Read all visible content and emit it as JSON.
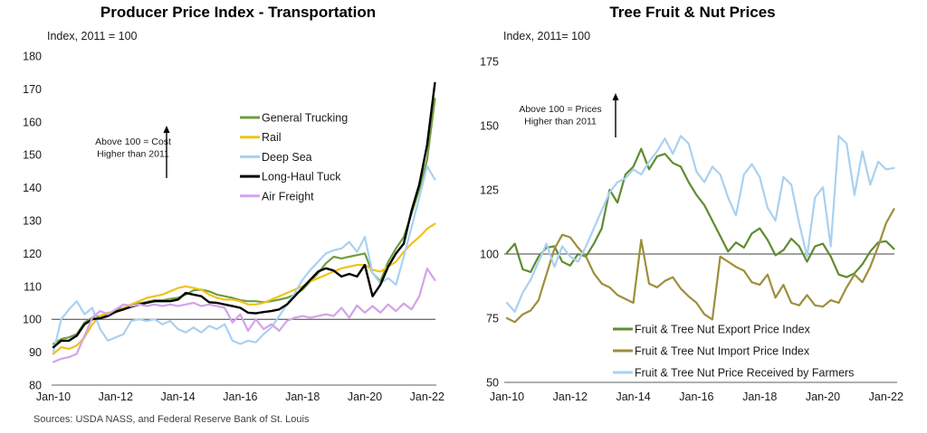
{
  "sources_note": "Sources: USDA NASS, and Federal Reserve  Bank of St. Louis",
  "chart_data": [
    {
      "type": "line",
      "title": "Producer Price Index - Transportation",
      "subtitle": "Index,  2011 = 100",
      "annotation": {
        "lines": [
          "Above 100 = Cost",
          "Higher than 2011"
        ],
        "arrow": "up"
      },
      "x_tick_labels": [
        "Jan-10",
        "Jan-12",
        "Jan-14",
        "Jan-16",
        "Jan-18",
        "Jan-20",
        "Jan-22"
      ],
      "x_tick_years": [
        2010,
        2012,
        2014,
        2016,
        2018,
        2020,
        2022
      ],
      "x_start": 2010.0,
      "x_step": 0.25,
      "ylim": [
        80,
        180
      ],
      "y_ticks": [
        80,
        90,
        100,
        110,
        120,
        130,
        140,
        150,
        160,
        170,
        180
      ],
      "reference_line": 100,
      "grid": false,
      "legend_position": "inside-upper-middle",
      "series": [
        {
          "name": "General Trucking",
          "color": "#6f9d3f",
          "values": [
            92.5,
            94,
            94.5,
            95.5,
            99,
            100.5,
            101,
            101.5,
            102.8,
            103.5,
            104,
            104.8,
            105.3,
            105.8,
            105.8,
            106.2,
            106.5,
            107.5,
            108.8,
            109,
            108.5,
            107.5,
            107,
            106.5,
            105.8,
            105.5,
            105.5,
            105.2,
            105.5,
            106,
            106.5,
            107.5,
            109,
            111.5,
            114,
            117,
            119,
            118.5,
            119,
            119.5,
            120,
            114,
            111.5,
            117.5,
            121.5,
            125,
            132,
            139.5,
            148.5,
            167
          ]
        },
        {
          "name": "Rail",
          "color": "#efc319",
          "values": [
            89.5,
            91.5,
            91,
            92,
            94.5,
            98.5,
            101,
            102,
            102,
            103.5,
            104.5,
            105.5,
            106.5,
            107,
            107.5,
            108.5,
            109.5,
            110,
            109.5,
            109,
            107.5,
            106.5,
            106,
            106,
            105.5,
            104.5,
            104.5,
            105,
            106,
            107,
            108,
            109,
            110,
            111.5,
            112.5,
            113.5,
            114.5,
            115.5,
            116,
            116.5,
            116.5,
            115,
            114.5,
            116,
            117.5,
            120.5,
            123,
            125,
            127.5,
            129
          ]
        },
        {
          "name": "Deep Sea",
          "color": "#a9d1f0",
          "values": [
            90,
            100,
            103,
            105.5,
            101.5,
            103.5,
            97,
            93.5,
            94.5,
            95.5,
            99.5,
            100,
            99.5,
            100,
            98.5,
            99.5,
            97,
            96,
            97.5,
            96,
            98,
            97,
            98.5,
            93.5,
            92.5,
            93.5,
            93,
            95.5,
            97.5,
            101,
            104.5,
            108,
            112,
            115,
            117.5,
            120,
            121,
            121.5,
            123.5,
            120.5,
            125,
            114,
            111,
            112.5,
            110.5,
            119,
            128,
            137,
            146.5,
            142.5
          ]
        },
        {
          "name": "Long-Haul Tuck",
          "color": "#000000",
          "values": [
            91.5,
            93.5,
            93.5,
            95,
            98.5,
            100,
            100.3,
            101,
            102.3,
            103,
            103.8,
            104.5,
            105,
            105.5,
            105.5,
            105.5,
            106,
            108,
            107.5,
            107,
            105.2,
            105,
            104.5,
            104,
            103.5,
            102,
            101.8,
            102.2,
            102.5,
            103,
            104.5,
            107,
            109.5,
            112,
            114.5,
            115.5,
            114.8,
            113,
            113.8,
            113,
            116.5,
            107,
            110.5,
            116,
            120,
            123,
            133,
            141,
            153,
            171.8
          ]
        },
        {
          "name": "Air Freight",
          "color": "#d3a3ea",
          "values": [
            87,
            88,
            88.5,
            89.5,
            95,
            100.5,
            102.5,
            101.5,
            103,
            104.5,
            104,
            104.5,
            104,
            104.5,
            104,
            104.5,
            104,
            104.5,
            105,
            104,
            104.5,
            104,
            103.5,
            99,
            101.5,
            96.5,
            100,
            97,
            98.5,
            96.5,
            99.5,
            100.5,
            101,
            100.5,
            101,
            101.5,
            101,
            103.5,
            100.5,
            104.2,
            102,
            104,
            102,
            104.5,
            102.5,
            104.8,
            103,
            107,
            115.4,
            111.9
          ]
        }
      ]
    },
    {
      "type": "line",
      "title": "Tree Fruit & Nut Prices",
      "subtitle": "Index,  2011= 100",
      "annotation": {
        "lines": [
          "Above 100 = Prices",
          "Higher than 2011"
        ],
        "arrow": "up"
      },
      "x_tick_labels": [
        "Jan-10",
        "Jan-12",
        "Jan-14",
        "Jan-16",
        "Jan-18",
        "Jan-20",
        "Jan-22"
      ],
      "x_tick_years": [
        2010,
        2012,
        2014,
        2016,
        2018,
        2020,
        2022
      ],
      "x_start": 2010.0,
      "x_step": 0.25,
      "ylim": [
        50,
        175
      ],
      "y_ticks": [
        50,
        75,
        100,
        125,
        150,
        175
      ],
      "reference_line": 100,
      "grid": false,
      "legend_position": "inside-lower-right",
      "series": [
        {
          "name": "Fruit & Tree Nut Export Price Index",
          "color": "#5f8c31",
          "values": [
            100.5,
            104,
            94,
            93,
            99,
            102.5,
            103,
            97,
            95.5,
            100,
            99,
            104,
            110,
            125,
            120,
            131,
            134,
            141,
            133,
            138,
            139,
            135.5,
            134,
            128,
            123,
            119,
            113,
            107,
            101,
            104.5,
            102.5,
            108,
            110,
            105.5,
            99.5,
            101.5,
            106,
            103,
            97,
            103,
            104,
            99,
            92,
            91,
            92.5,
            96,
            101,
            104.5,
            105,
            102
          ]
        },
        {
          "name": "Fruit & Tree Nut Import Price Index",
          "color": "#9d8f3c",
          "values": [
            75,
            73.5,
            76.5,
            78,
            82,
            92,
            102,
            107.5,
            106.5,
            102.5,
            99,
            92.5,
            88.5,
            87,
            84,
            82.5,
            81,
            105.5,
            88.5,
            87,
            89.5,
            91,
            86.5,
            83.5,
            81,
            76.5,
            74.5,
            99,
            97,
            95,
            93.5,
            89,
            88,
            92,
            83,
            88,
            81,
            80,
            84,
            80,
            79.5,
            82,
            81,
            87,
            92,
            89,
            95,
            103,
            112,
            117.5
          ]
        },
        {
          "name": "Fruit & Tree Nut Price Received by Farmers",
          "color": "#a9d1f0",
          "values": [
            81,
            77.5,
            85,
            90,
            97,
            104,
            95,
            103,
            99,
            97,
            103,
            110,
            117,
            124,
            128,
            129.5,
            133,
            131,
            136,
            140,
            145,
            139,
            146,
            143,
            132,
            128,
            134,
            131,
            122,
            115,
            131,
            135,
            130,
            118,
            113,
            130,
            127,
            112,
            99,
            122,
            126,
            103,
            146,
            143,
            123,
            140,
            127,
            136,
            133,
            133.5
          ]
        }
      ]
    }
  ]
}
